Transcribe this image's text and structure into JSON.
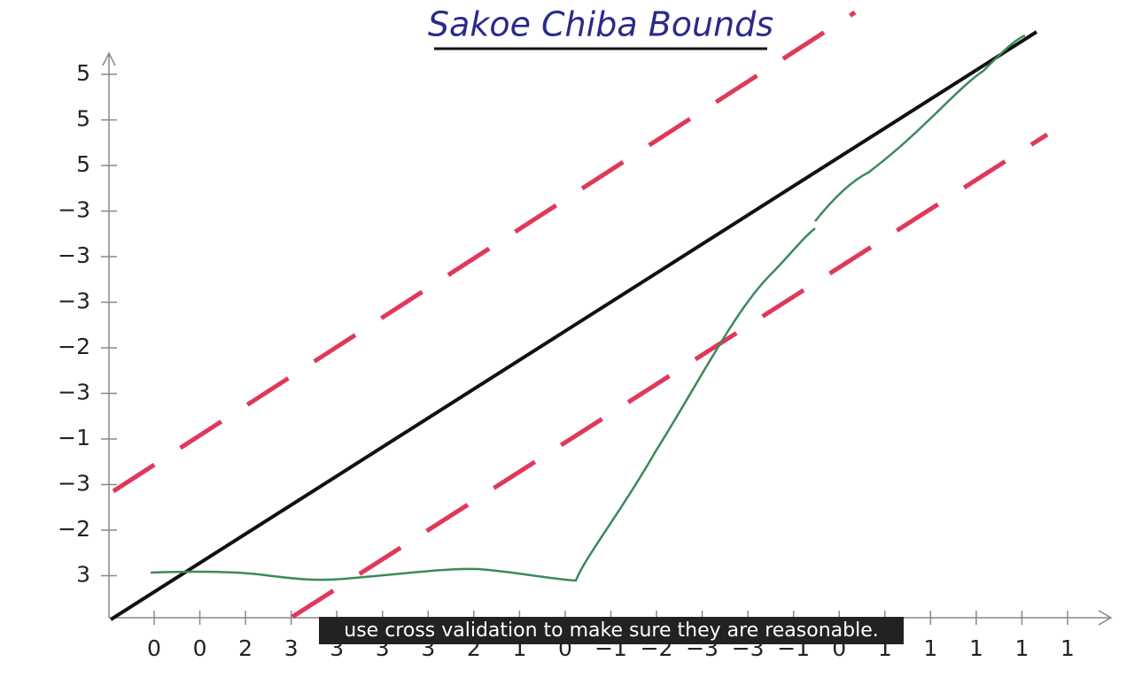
{
  "title": "Sakoe Chiba Bounds",
  "y_axis_labels": [
    "5",
    "5",
    "5",
    "−3",
    "−3",
    "−3",
    "−2",
    "−3",
    "−1",
    "−3",
    "−2",
    "3"
  ],
  "x_axis_labels": [
    "0",
    "0",
    "2",
    "3",
    "3",
    "3",
    "3",
    "2",
    "1",
    "0",
    "−1",
    "−2",
    "−3",
    "−3",
    "−1",
    "0",
    "1",
    "1",
    "1",
    "1",
    "1"
  ],
  "caption": "use cross validation to make sure they are reasonable."
}
